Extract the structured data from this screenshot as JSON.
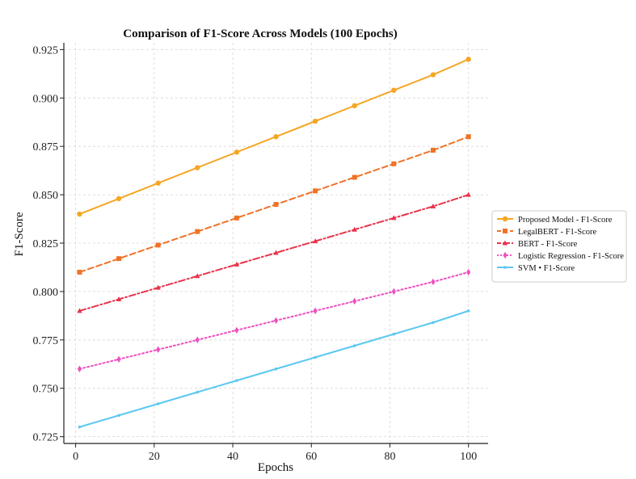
{
  "chart_data": {
    "type": "line",
    "title": "Comparison of F1-Score Across Models (100 Epochs)",
    "xlabel": "Epochs",
    "ylabel": "F1-Score",
    "xlim": [
      -3,
      105
    ],
    "ylim": [
      0.7215,
      0.9285
    ],
    "xticks": [
      0,
      20,
      40,
      60,
      80,
      100
    ],
    "yticks": [
      0.725,
      0.75,
      0.775,
      0.8,
      0.825,
      0.85,
      0.875,
      0.9,
      0.925
    ],
    "ytick_labels": [
      "0.725",
      "0.750",
      "0.775",
      "0.800",
      "0.825",
      "0.850",
      "0.875",
      "0.900",
      "0.925"
    ],
    "xtick_labels": [
      "0",
      "20",
      "40",
      "60",
      "80",
      "100"
    ],
    "grid": true,
    "legend_position": "center-right-outside",
    "x": [
      1,
      11,
      21,
      31,
      41,
      51,
      61,
      71,
      81,
      91,
      100
    ],
    "series": [
      {
        "name": "Proposed Model - F1-Score",
        "color": "#F5A623",
        "dash": "solid",
        "marker": "circle",
        "values": [
          0.84,
          0.848,
          0.856,
          0.864,
          0.872,
          0.88,
          0.888,
          0.896,
          0.904,
          0.912,
          0.92
        ]
      },
      {
        "name": "LegalBERT - F1-Score",
        "color": "#F07226",
        "dash": "dashed",
        "marker": "square",
        "values": [
          0.81,
          0.817,
          0.824,
          0.831,
          0.838,
          0.845,
          0.852,
          0.859,
          0.866,
          0.873,
          0.88
        ]
      },
      {
        "name": "BERT - F1-Score",
        "color": "#E8334A",
        "dash": "dashdot",
        "marker": "triangle",
        "values": [
          0.79,
          0.796,
          0.802,
          0.808,
          0.814,
          0.82,
          0.826,
          0.832,
          0.838,
          0.844,
          0.85
        ]
      },
      {
        "name": "Logistic Regression - F1-Score",
        "color": "#F04FC0",
        "dash": "dotted",
        "marker": "diamond",
        "values": [
          0.76,
          0.765,
          0.77,
          0.775,
          0.78,
          0.785,
          0.79,
          0.795,
          0.8,
          0.805,
          0.81
        ]
      },
      {
        "name": "SVM • F1-Score",
        "color": "#5BC8F0",
        "dash": "solid",
        "marker": "point",
        "values": [
          0.73,
          0.736,
          0.742,
          0.748,
          0.754,
          0.76,
          0.766,
          0.772,
          0.778,
          0.784,
          0.79
        ]
      }
    ]
  }
}
